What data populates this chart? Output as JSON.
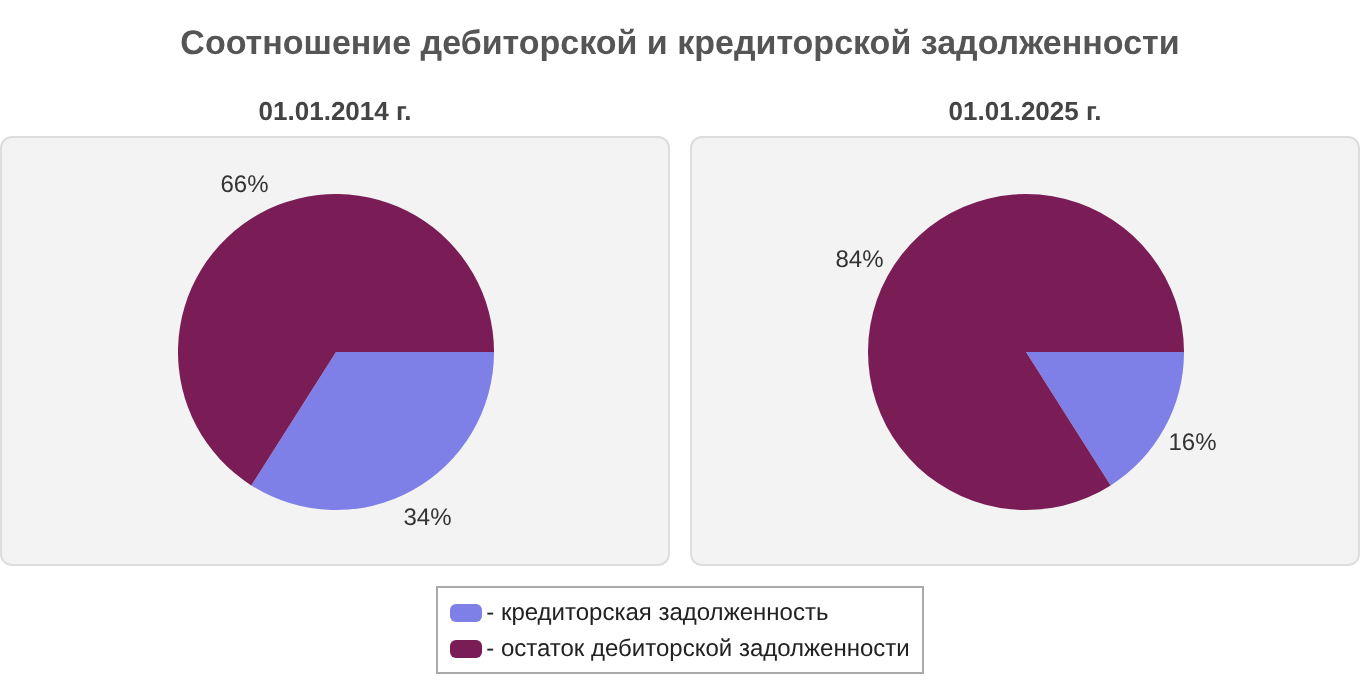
{
  "chart_data": [
    {
      "type": "pie",
      "title": "Соотношение дебиторской и кредиторской задолженности",
      "subtitle": "01.01.2014 г.",
      "categories": [
        "- кредиторская задолженность",
        "- остаток дебиторской задолженности"
      ],
      "values": [
        34,
        66
      ],
      "value_labels": [
        "34%",
        "66%"
      ],
      "colors": [
        "#7f7fe8",
        "#7a1c55"
      ],
      "legend": "bottom"
    },
    {
      "type": "pie",
      "subtitle": "01.01.2025 г.",
      "categories": [
        null,
        null
      ],
      "values": [
        16,
        84
      ],
      "value_labels": [
        "16%",
        "84%"
      ],
      "colors": [
        "#7f7fe8",
        "#7a1c55"
      ]
    }
  ]
}
